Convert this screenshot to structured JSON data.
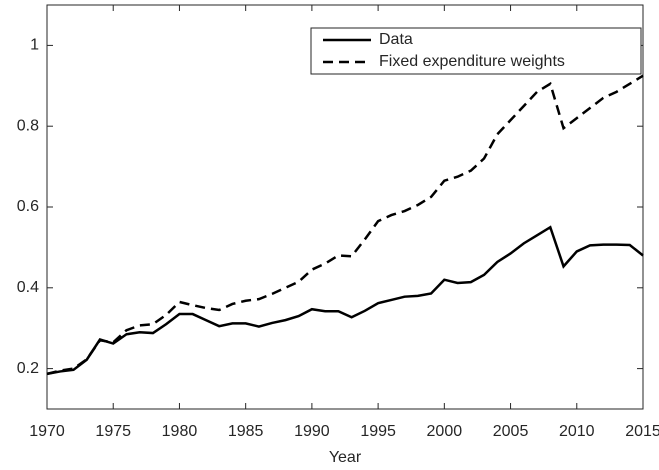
{
  "chart_data": {
    "type": "line",
    "x_label": "Year",
    "x": [
      1970,
      1971,
      1972,
      1973,
      1974,
      1975,
      1976,
      1977,
      1978,
      1979,
      1980,
      1981,
      1982,
      1983,
      1984,
      1985,
      1986,
      1987,
      1988,
      1989,
      1990,
      1991,
      1992,
      1993,
      1994,
      1995,
      1996,
      1997,
      1998,
      1999,
      2000,
      2001,
      2002,
      2003,
      2004,
      2005,
      2006,
      2007,
      2008,
      2009,
      2010,
      2011,
      2012,
      2013,
      2014,
      2015
    ],
    "series": [
      {
        "name": "Data",
        "color": "#000000",
        "dash": "solid",
        "values": [
          0.187,
          0.193,
          0.197,
          0.222,
          0.272,
          0.262,
          0.285,
          0.29,
          0.288,
          0.31,
          0.335,
          0.335,
          0.32,
          0.305,
          0.312,
          0.312,
          0.304,
          0.313,
          0.32,
          0.33,
          0.347,
          0.342,
          0.342,
          0.327,
          0.343,
          0.362,
          0.37,
          0.378,
          0.38,
          0.386,
          0.42,
          0.412,
          0.414,
          0.432,
          0.464,
          0.485,
          0.51,
          0.53,
          0.55,
          0.453,
          0.49,
          0.505,
          0.507,
          0.507,
          0.506,
          0.48
        ]
      },
      {
        "name": "Fixed expenditure weights",
        "color": "#000000",
        "dash": "dashed",
        "values": [
          0.187,
          0.195,
          0.2,
          0.223,
          0.27,
          0.265,
          0.295,
          0.307,
          0.31,
          0.333,
          0.365,
          0.357,
          0.35,
          0.345,
          0.36,
          0.368,
          0.372,
          0.385,
          0.4,
          0.415,
          0.445,
          0.46,
          0.48,
          0.478,
          0.52,
          0.565,
          0.58,
          0.59,
          0.605,
          0.625,
          0.665,
          0.675,
          0.69,
          0.72,
          0.78,
          0.815,
          0.85,
          0.885,
          0.905,
          0.795,
          0.82,
          0.845,
          0.87,
          0.885,
          0.905,
          0.925
        ]
      }
    ],
    "xlim": [
      1970,
      2015
    ],
    "xticks": [
      1970,
      1975,
      1980,
      1985,
      1990,
      1995,
      2000,
      2005,
      2010,
      2015
    ],
    "ylim": [
      0.1,
      1.1
    ],
    "yticks": [
      0.2,
      0.4,
      0.6,
      0.8,
      1
    ],
    "grid": false,
    "legend": "upper right"
  }
}
